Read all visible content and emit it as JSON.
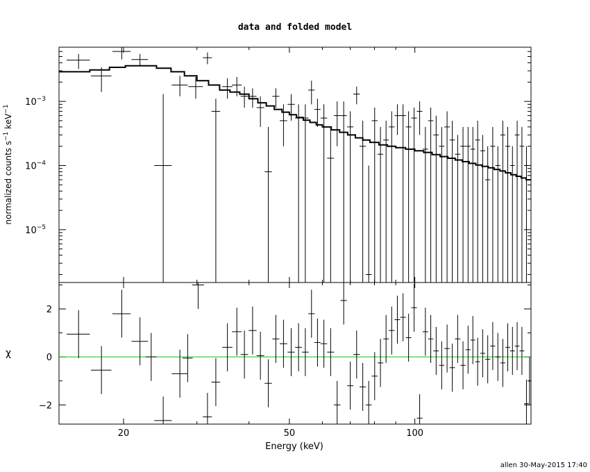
{
  "chart_data": [
    {
      "type": "scatter",
      "panel": "top",
      "title": "data and folded model",
      "ylabel": "normalized counts s^-1 keV^-1",
      "ylabel_main": "normalized counts s",
      "ylabel_mid": "  keV",
      "xscale": "log",
      "yscale": "log",
      "xlim": [
        14,
        190
      ],
      "ylim": [
        1.5e-06,
        0.007
      ],
      "yticks": [
        {
          "value": 0.001,
          "base": "10",
          "exp": "−3"
        },
        {
          "value": 0.0001,
          "base": "10",
          "exp": "−4"
        },
        {
          "value": 1e-05,
          "base": "10",
          "exp": "−5"
        }
      ],
      "data_color": "#000000",
      "model_color": "#000000",
      "series": [
        {
          "name": "",
          "style": "crosses",
          "x": [
            15.6,
            17.7,
            19.8,
            21.9,
            24.9,
            27.3,
            29.8,
            31.8,
            33.3,
            35.5,
            37.4,
            39.0,
            40.8,
            42.6,
            44.5,
            46.4,
            48.4,
            50.5,
            52.6,
            54.6,
            56.5,
            58.4,
            60.5,
            62.8,
            65.1,
            67.5,
            70.0,
            72.5,
            75.0,
            77.5,
            80.1,
            82.7,
            85.3,
            88.0,
            90.8,
            93.7,
            96.6,
            99.6,
            102.7,
            106.0,
            109.2,
            112.5,
            116.0,
            119.5,
            123.0,
            126.7,
            130.5,
            134.2,
            137.8,
            141.5,
            145.5,
            149.6,
            153.8,
            158.2,
            162.6,
            167.1,
            171.5,
            176.0,
            180.7,
            185.3
          ],
          "xerr": [
            1.0,
            1.0,
            1.0,
            1.0,
            1.2,
            1.2,
            1.2,
            0.8,
            0.8,
            1.0,
            1.0,
            0.8,
            0.9,
            0.9,
            0.9,
            0.9,
            1.0,
            1.0,
            1.0,
            1.0,
            1.0,
            1.0,
            1.1,
            1.2,
            1.2,
            1.2,
            1.2,
            1.3,
            1.3,
            1.3,
            1.3,
            1.3,
            1.3,
            1.4,
            1.4,
            1.5,
            1.5,
            1.5,
            1.6,
            1.6,
            1.6,
            1.7,
            1.7,
            1.8,
            1.8,
            1.9,
            1.9,
            1.8,
            1.8,
            1.9,
            2.0,
            2.1,
            2.1,
            2.2,
            2.2,
            2.2,
            2.2,
            2.3,
            2.3,
            2.3
          ],
          "y": [
            0.0044,
            0.0025,
            0.006,
            0.0045,
            0.0001,
            0.0018,
            0.0017,
            0.0048,
            0.0007,
            0.0017,
            0.0018,
            0.0012,
            0.0012,
            0.0008,
            8e-05,
            0.0012,
            0.0005,
            0.0009,
            0.00055,
            0.00055,
            0.0015,
            0.00075,
            0.00055,
            0.00013,
            0.0006,
            0.0006,
            0.0004,
            0.0013,
            0.0002,
            2e-06,
            0.0005,
            0.00015,
            0.00025,
            0.0004,
            0.0006,
            0.0006,
            0.0004,
            0.00055,
            0.0007,
            0.00018,
            0.0005,
            0.0003,
            0.0002,
            0.0004,
            0.00025,
            0.00015,
            0.0002,
            0.0002,
            0.00018,
            0.00025,
            0.00017,
            6e-05,
            0.0002,
            0.0001,
            0.0003,
            0.0002,
            0.0001,
            0.0003,
            0.0002,
            0.0001
          ],
          "ylo": [
            0.0032,
            0.0014,
            0.0045,
            0.0036,
            1.5e-06,
            0.0012,
            0.0011,
            0.0038,
            1.5e-06,
            0.0011,
            0.0012,
            0.0008,
            0.0008,
            0.0004,
            1.5e-06,
            0.0008,
            0.0002,
            0.0005,
            1.5e-06,
            1.5e-06,
            0.0009,
            0.0004,
            1.5e-06,
            1.5e-06,
            0.0002,
            1.5e-06,
            1.5e-06,
            0.0009,
            1.5e-06,
            1.5e-06,
            1.5e-06,
            1.5e-06,
            1.5e-06,
            1.5e-06,
            0.0003,
            1.5e-06,
            1.5e-06,
            1.5e-06,
            0.0003,
            1.5e-06,
            1.5e-06,
            1.5e-06,
            1.5e-06,
            1.5e-06,
            1.5e-06,
            1.5e-06,
            1.5e-06,
            1.5e-06,
            1.5e-06,
            1.5e-06,
            1.5e-06,
            1.5e-06,
            1.5e-06,
            1.5e-06,
            1.5e-06,
            1.5e-06,
            1.5e-06,
            1.5e-06,
            1.5e-06,
            1.5e-06
          ],
          "yhi": [
            0.0055,
            0.0034,
            0.0075,
            0.0055,
            0.0013,
            0.0025,
            0.0024,
            0.0058,
            0.0011,
            0.0023,
            0.0024,
            0.0017,
            0.0016,
            0.0012,
            0.0004,
            0.0016,
            0.0009,
            0.0013,
            0.0009,
            0.0009,
            0.0021,
            0.0011,
            0.0009,
            0.0004,
            0.001,
            0.001,
            0.0007,
            0.0017,
            0.0005,
            0.0001,
            0.0008,
            0.0004,
            0.0005,
            0.0007,
            0.0009,
            0.0009,
            0.0007,
            0.0008,
            0.001,
            0.0004,
            0.0008,
            0.0006,
            0.0004,
            0.0007,
            0.0005,
            0.0003,
            0.0004,
            0.0004,
            0.0004,
            0.0005,
            0.0003,
            0.0002,
            0.0004,
            0.0002,
            0.0005,
            0.0004,
            0.0002,
            0.0005,
            0.0004,
            0.0002
          ]
        },
        {
          "name": "",
          "style": "step",
          "x": [
            14,
            16.6,
            18.5,
            20.2,
            22.0,
            24.0,
            26.0,
            28.0,
            30.0,
            32.0,
            34.0,
            36.0,
            38.0,
            40.0,
            42.0,
            44.0,
            46.0,
            48.0,
            50.0,
            52.0,
            54.0,
            56.0,
            58.0,
            60.0,
            63.0,
            66.0,
            69.0,
            72.0,
            75.0,
            78.0,
            82.0,
            86.0,
            90.0,
            95.0,
            100.0,
            105.0,
            110.0,
            115.0,
            120.0,
            125.0,
            130.0,
            135.0,
            140.0,
            145.0,
            150.0,
            155.0,
            160.0,
            165.0,
            170.0,
            175.0,
            180.0,
            185.0,
            190.0
          ],
          "y": [
            0.0029,
            0.0031,
            0.0034,
            0.0036,
            0.0036,
            0.0033,
            0.0029,
            0.0025,
            0.0021,
            0.0018,
            0.0015,
            0.0014,
            0.0013,
            0.0011,
            0.00095,
            0.00085,
            0.00075,
            0.00068,
            0.00062,
            0.00056,
            0.00051,
            0.00047,
            0.00043,
            0.0004,
            0.00036,
            0.00033,
            0.0003,
            0.00027,
            0.00025,
            0.00023,
            0.00021,
            0.0002,
            0.00019,
            0.00018,
            0.00017,
            0.00016,
            0.000148,
            0.000138,
            0.00013,
            0.000122,
            0.000115,
            0.000108,
            0.000102,
            9.7e-05,
            9.2e-05,
            8.7e-05,
            8.2e-05,
            7.7e-05,
            7.2e-05,
            6.8e-05,
            6.4e-05,
            6e-05,
            5.8e-05
          ]
        }
      ]
    },
    {
      "type": "scatter",
      "panel": "bottom",
      "xlabel": "Energy (keV)",
      "ylabel": "χ",
      "xscale": "log",
      "xlim": [
        14,
        190
      ],
      "ylim": [
        -2.8,
        3.1
      ],
      "xticks": [
        {
          "value": 20,
          "label": "20"
        },
        {
          "value": 50,
          "label": "50"
        },
        {
          "value": 100,
          "label": "100"
        }
      ],
      "yticks": [
        {
          "value": 2,
          "label": "2"
        },
        {
          "value": 0,
          "label": "0"
        },
        {
          "value": -2,
          "label": "−2"
        }
      ],
      "zero_line_color": "#00cc00",
      "series": [
        {
          "name": "",
          "x": [
            15.6,
            17.7,
            19.8,
            21.9,
            23.3,
            24.9,
            27.3,
            28.5,
            30.2,
            31.8,
            33.3,
            35.5,
            37.4,
            39.0,
            40.8,
            42.6,
            44.5,
            46.4,
            48.4,
            50.5,
            52.6,
            54.6,
            56.5,
            58.4,
            60.5,
            62.8,
            65.1,
            67.5,
            70.0,
            72.5,
            75.0,
            77.5,
            80.1,
            82.7,
            85.3,
            88.0,
            90.8,
            93.7,
            96.6,
            99.6,
            102.7,
            106.0,
            109.2,
            112.5,
            116.0,
            119.5,
            123.0,
            126.7,
            130.5,
            134.2,
            137.8,
            141.5,
            145.5,
            149.6,
            153.8,
            158.2,
            162.6,
            167.1,
            171.5,
            176.0,
            180.7,
            185.3,
            188.5
          ],
          "xerr": [
            1.0,
            1.0,
            1.0,
            1.0,
            0.7,
            1.2,
            1.2,
            0.8,
            1.0,
            0.8,
            0.8,
            1.0,
            1.0,
            0.8,
            0.9,
            0.9,
            0.9,
            0.9,
            1.0,
            1.0,
            1.0,
            1.0,
            1.0,
            1.0,
            1.1,
            1.2,
            1.2,
            1.2,
            1.2,
            1.3,
            1.3,
            1.3,
            1.3,
            1.3,
            1.3,
            1.4,
            1.4,
            1.5,
            1.5,
            1.5,
            1.6,
            1.6,
            1.6,
            1.7,
            1.7,
            1.8,
            1.8,
            1.9,
            1.9,
            1.8,
            1.8,
            1.9,
            2.0,
            2.1,
            2.1,
            2.2,
            2.2,
            2.2,
            2.2,
            2.3,
            2.3,
            2.3,
            1.2
          ],
          "y": [
            0.95,
            -0.55,
            1.8,
            0.65,
            0.0,
            -2.65,
            -0.7,
            -0.05,
            3.0,
            -2.5,
            -1.05,
            0.4,
            1.05,
            0.1,
            1.1,
            0.05,
            -1.1,
            0.75,
            0.55,
            0.2,
            0.4,
            0.2,
            1.8,
            0.6,
            0.55,
            0.2,
            -2.0,
            2.35,
            -1.2,
            0.1,
            -1.25,
            -2.0,
            -0.8,
            -0.25,
            0.75,
            1.1,
            1.55,
            1.65,
            0.8,
            2.05,
            -2.55,
            1.05,
            0.75,
            0.25,
            -0.35,
            0.35,
            -0.45,
            0.75,
            -0.35,
            0.3,
            0.7,
            -0.2,
            0.15,
            -0.1,
            0.45,
            0.0,
            -0.25,
            0.4,
            0.25,
            0.45,
            0.25,
            -1.95,
            -1.0
          ],
          "yerr": [
            1.0,
            1.0,
            1.0,
            1.0,
            1.0,
            1.0,
            1.0,
            1.0,
            1.0,
            1.0,
            1.0,
            1.0,
            1.0,
            1.0,
            1.0,
            1.0,
            1.0,
            1.0,
            1.0,
            1.0,
            1.0,
            1.0,
            1.0,
            1.0,
            1.0,
            1.0,
            1.0,
            1.0,
            1.0,
            1.0,
            1.0,
            1.0,
            1.0,
            1.0,
            1.0,
            1.0,
            1.0,
            1.0,
            1.0,
            1.0,
            1.0,
            1.0,
            1.0,
            1.0,
            1.0,
            1.0,
            1.0,
            1.0,
            1.0,
            1.0,
            1.0,
            1.0,
            1.0,
            1.0,
            1.0,
            1.0,
            1.0,
            1.0,
            1.0,
            1.0,
            1.0,
            1.0,
            1.0
          ]
        }
      ]
    }
  ],
  "footer": {
    "credit": "allen 30-May-2015 17:40"
  }
}
